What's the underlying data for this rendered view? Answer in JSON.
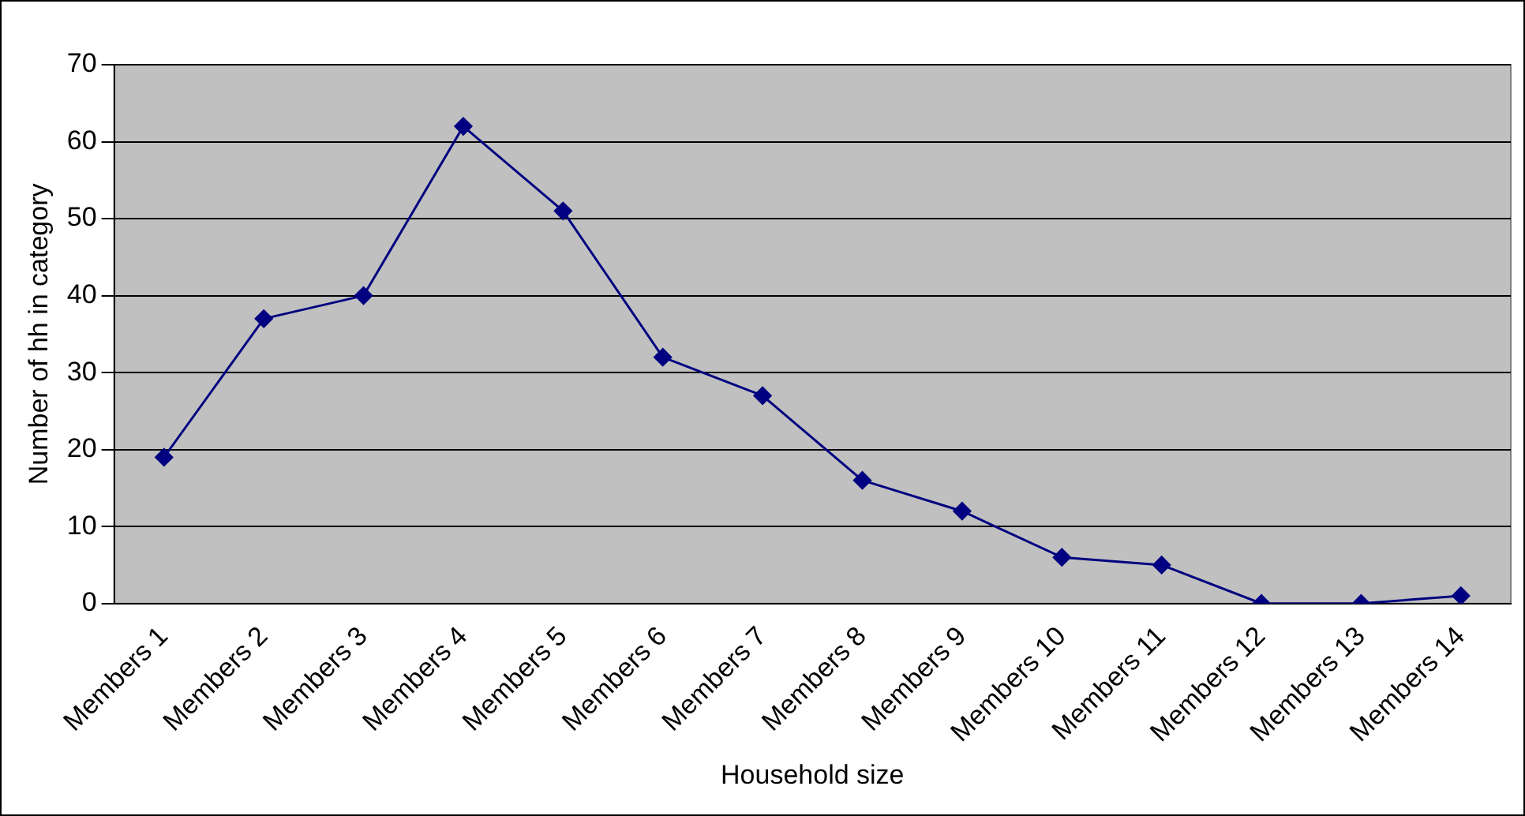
{
  "chart_data": {
    "type": "line",
    "xlabel": "Household size",
    "ylabel": "Number of hh in category",
    "categories": [
      "Members 1",
      "Members 2",
      "Members 3",
      "Members 4",
      "Members 5",
      "Members 6",
      "Members 7",
      "Members 8",
      "Members 9",
      "Members 10",
      "Members 11",
      "Members 12",
      "Members 13",
      "Members 14"
    ],
    "values": [
      19,
      37,
      40,
      62,
      51,
      32,
      27,
      16,
      12,
      6,
      5,
      0,
      0,
      1
    ],
    "color": "#000080",
    "ylim": [
      0,
      70
    ],
    "yticks": [
      0,
      10,
      20,
      30,
      40,
      50,
      60,
      70
    ],
    "grid": "y",
    "legend": false,
    "marker": "diamond",
    "line_style": "solid"
  }
}
